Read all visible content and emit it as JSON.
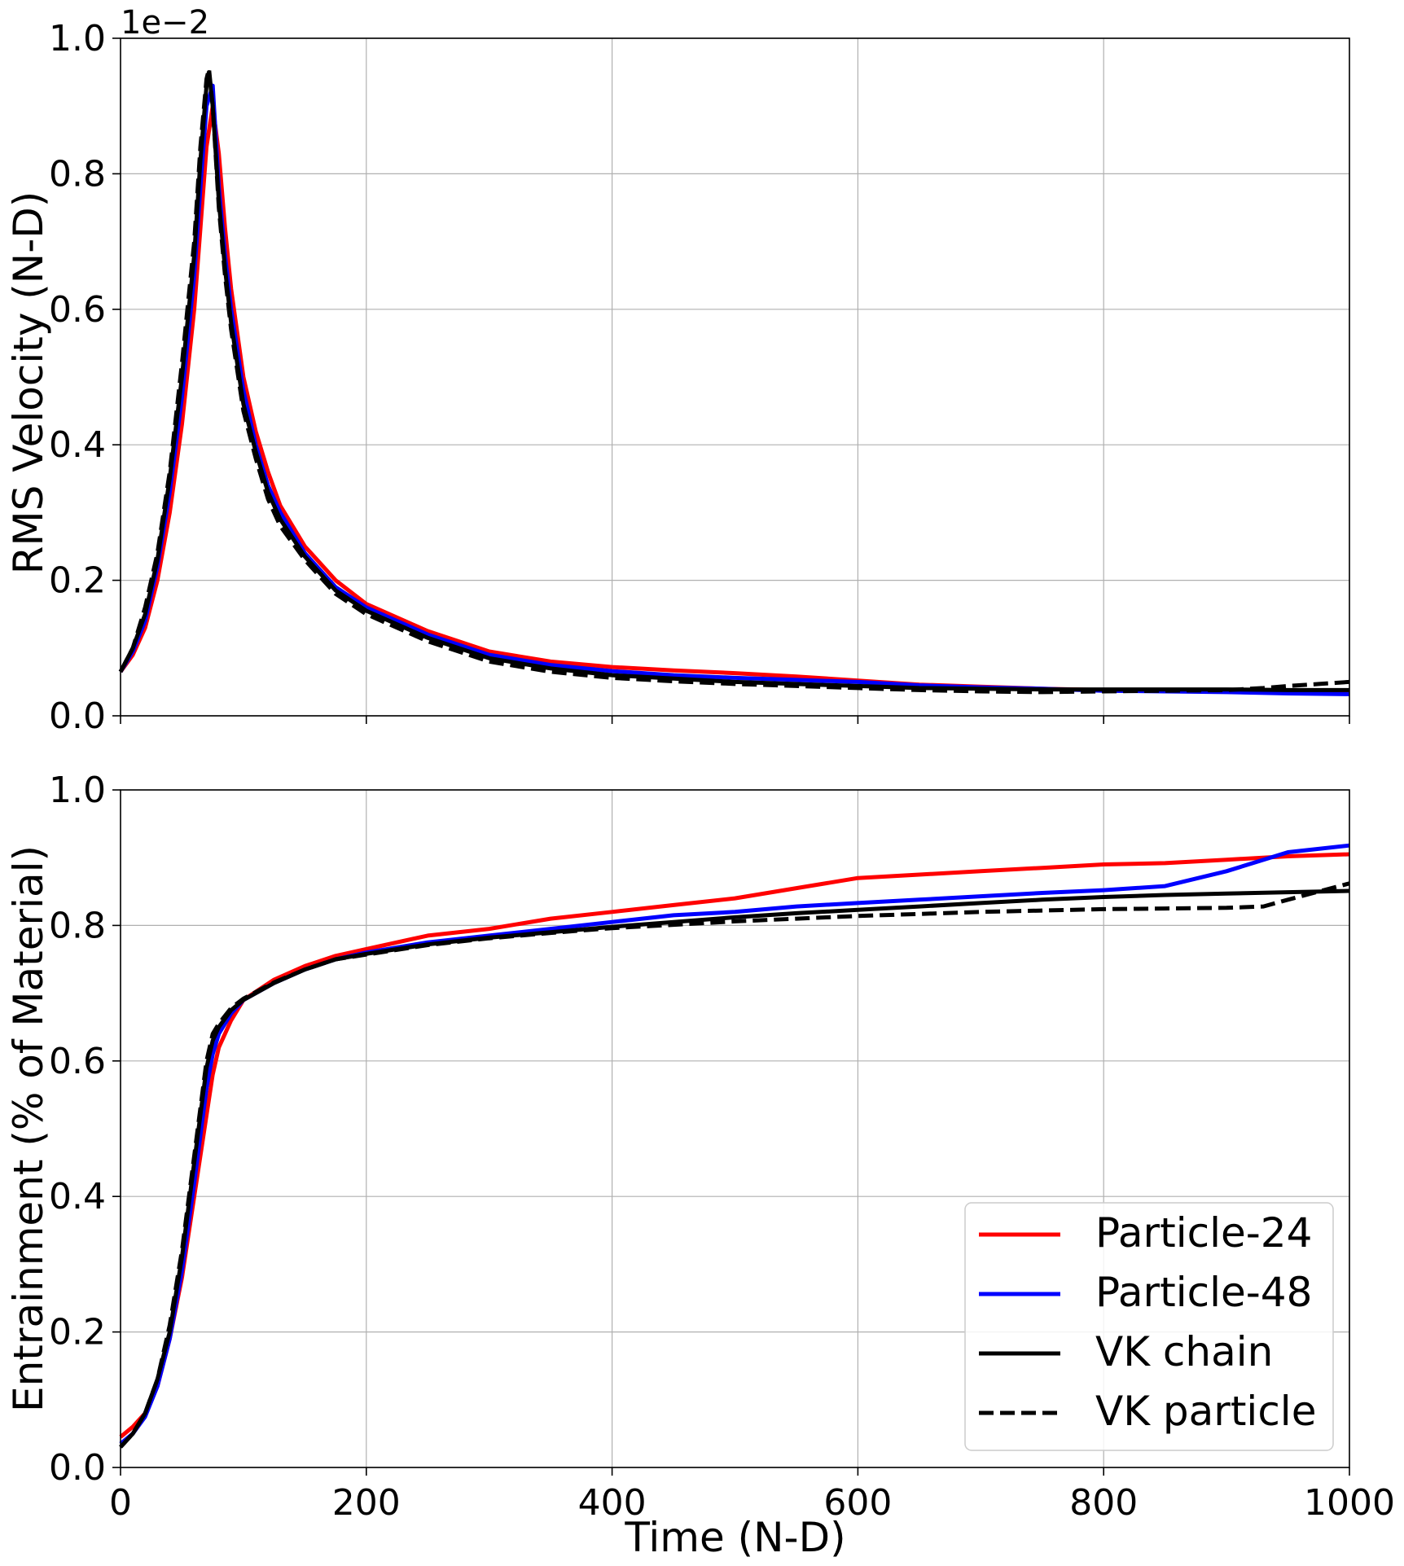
{
  "chart_data": [
    {
      "type": "line",
      "ylabel": "RMS Velocity (N-D)",
      "xlabel": "",
      "scale_label": "1e−2",
      "xlim": [
        0,
        1000
      ],
      "ylim": [
        0,
        1.0
      ],
      "xticks": [
        0,
        200,
        400,
        600,
        800,
        1000
      ],
      "xtick_labels_shown": false,
      "yticks": [
        "0.0",
        "0.2",
        "0.4",
        "0.6",
        "0.8",
        "1.0"
      ],
      "grid": true,
      "series": [
        {
          "name": "Particle-24",
          "color": "#ff0000",
          "dash": "solid",
          "x": [
            0,
            10,
            20,
            30,
            40,
            50,
            60,
            65,
            70,
            75,
            80,
            85,
            90,
            100,
            110,
            120,
            130,
            150,
            175,
            200,
            250,
            300,
            350,
            400,
            450,
            500,
            550,
            600,
            650,
            700,
            750,
            800,
            850,
            900,
            950,
            1000
          ],
          "y": [
            0.065,
            0.09,
            0.13,
            0.2,
            0.3,
            0.43,
            0.6,
            0.72,
            0.84,
            0.9,
            0.83,
            0.72,
            0.63,
            0.5,
            0.42,
            0.36,
            0.31,
            0.25,
            0.2,
            0.165,
            0.125,
            0.095,
            0.08,
            0.072,
            0.067,
            0.063,
            0.058,
            0.052,
            0.046,
            0.043,
            0.04,
            0.038,
            0.037,
            0.036,
            0.035,
            0.035
          ]
        },
        {
          "name": "Particle-48",
          "color": "#0000ff",
          "dash": "solid",
          "x": [
            0,
            10,
            20,
            30,
            40,
            50,
            60,
            65,
            70,
            75,
            80,
            85,
            90,
            100,
            110,
            120,
            130,
            150,
            175,
            200,
            250,
            300,
            350,
            400,
            450,
            500,
            550,
            600,
            650,
            700,
            750,
            800,
            850,
            900,
            950,
            1000
          ],
          "y": [
            0.065,
            0.095,
            0.14,
            0.22,
            0.33,
            0.47,
            0.65,
            0.78,
            0.9,
            0.93,
            0.78,
            0.68,
            0.6,
            0.48,
            0.4,
            0.34,
            0.3,
            0.24,
            0.19,
            0.16,
            0.12,
            0.09,
            0.075,
            0.066,
            0.06,
            0.056,
            0.053,
            0.05,
            0.045,
            0.042,
            0.04,
            0.037,
            0.036,
            0.035,
            0.033,
            0.032
          ]
        },
        {
          "name": "VK chain",
          "color": "#000000",
          "dash": "solid",
          "x": [
            0,
            10,
            20,
            30,
            40,
            50,
            60,
            65,
            70,
            72,
            75,
            80,
            85,
            90,
            100,
            110,
            120,
            130,
            150,
            175,
            200,
            250,
            300,
            350,
            400,
            450,
            500,
            550,
            600,
            650,
            700,
            750,
            800,
            850,
            900,
            950,
            1000
          ],
          "y": [
            0.065,
            0.1,
            0.15,
            0.23,
            0.35,
            0.5,
            0.68,
            0.82,
            0.93,
            0.95,
            0.9,
            0.76,
            0.66,
            0.58,
            0.46,
            0.39,
            0.33,
            0.29,
            0.235,
            0.185,
            0.155,
            0.115,
            0.085,
            0.07,
            0.06,
            0.055,
            0.05,
            0.047,
            0.044,
            0.041,
            0.04,
            0.039,
            0.039,
            0.039,
            0.039,
            0.038,
            0.038
          ]
        },
        {
          "name": "VK particle",
          "color": "#000000",
          "dash": "dashed",
          "x": [
            0,
            10,
            20,
            30,
            40,
            50,
            60,
            65,
            70,
            72,
            75,
            80,
            85,
            90,
            100,
            110,
            120,
            130,
            150,
            175,
            200,
            250,
            300,
            350,
            400,
            450,
            500,
            550,
            600,
            650,
            700,
            750,
            800,
            850,
            900,
            930,
            950,
            975,
            1000
          ],
          "y": [
            0.065,
            0.1,
            0.16,
            0.24,
            0.36,
            0.52,
            0.7,
            0.84,
            0.94,
            0.955,
            0.9,
            0.75,
            0.65,
            0.57,
            0.45,
            0.38,
            0.32,
            0.28,
            0.23,
            0.18,
            0.15,
            0.11,
            0.08,
            0.065,
            0.056,
            0.051,
            0.047,
            0.044,
            0.041,
            0.038,
            0.036,
            0.035,
            0.036,
            0.037,
            0.038,
            0.041,
            0.044,
            0.047,
            0.05
          ]
        }
      ]
    },
    {
      "type": "line",
      "ylabel": "Entrainment (% of Material)",
      "xlabel": "Time (N-D)",
      "xlim": [
        0,
        1000
      ],
      "ylim": [
        0,
        1.0
      ],
      "xticks": [
        0,
        200,
        400,
        600,
        800,
        1000
      ],
      "xtick_labels": [
        "0",
        "200",
        "400",
        "600",
        "800",
        "1000"
      ],
      "yticks": [
        "0.0",
        "0.2",
        "0.4",
        "0.6",
        "0.8",
        "1.0"
      ],
      "grid": true,
      "legend_position": "bottom-right",
      "series": [
        {
          "name": "Particle-24",
          "color": "#ff0000",
          "dash": "solid",
          "x": [
            0,
            10,
            20,
            30,
            40,
            50,
            60,
            70,
            75,
            80,
            90,
            100,
            125,
            150,
            175,
            200,
            250,
            300,
            350,
            400,
            450,
            500,
            550,
            600,
            650,
            700,
            750,
            800,
            850,
            900,
            950,
            1000
          ],
          "y": [
            0.045,
            0.06,
            0.08,
            0.12,
            0.19,
            0.28,
            0.4,
            0.52,
            0.58,
            0.62,
            0.66,
            0.69,
            0.72,
            0.74,
            0.755,
            0.765,
            0.785,
            0.795,
            0.81,
            0.82,
            0.83,
            0.84,
            0.855,
            0.87,
            0.875,
            0.88,
            0.885,
            0.89,
            0.892,
            0.897,
            0.902,
            0.905
          ]
        },
        {
          "name": "Particle-48",
          "color": "#0000ff",
          "dash": "solid",
          "x": [
            0,
            10,
            20,
            30,
            40,
            50,
            60,
            70,
            75,
            80,
            90,
            100,
            125,
            150,
            175,
            200,
            250,
            300,
            350,
            400,
            450,
            500,
            550,
            600,
            650,
            700,
            750,
            800,
            850,
            900,
            950,
            1000
          ],
          "y": [
            0.035,
            0.05,
            0.075,
            0.12,
            0.19,
            0.29,
            0.42,
            0.56,
            0.61,
            0.64,
            0.67,
            0.69,
            0.715,
            0.735,
            0.75,
            0.76,
            0.775,
            0.785,
            0.795,
            0.805,
            0.815,
            0.82,
            0.828,
            0.833,
            0.838,
            0.843,
            0.848,
            0.852,
            0.858,
            0.88,
            0.908,
            0.918
          ]
        },
        {
          "name": "VK chain",
          "color": "#000000",
          "dash": "solid",
          "x": [
            0,
            10,
            20,
            30,
            40,
            50,
            60,
            70,
            75,
            80,
            90,
            100,
            125,
            150,
            175,
            200,
            250,
            300,
            350,
            400,
            450,
            500,
            550,
            600,
            650,
            700,
            750,
            800,
            850,
            900,
            950,
            1000
          ],
          "y": [
            0.03,
            0.05,
            0.08,
            0.13,
            0.2,
            0.31,
            0.45,
            0.59,
            0.63,
            0.65,
            0.675,
            0.69,
            0.715,
            0.735,
            0.75,
            0.758,
            0.772,
            0.782,
            0.79,
            0.798,
            0.805,
            0.812,
            0.818,
            0.823,
            0.828,
            0.833,
            0.838,
            0.842,
            0.845,
            0.847,
            0.849,
            0.851
          ]
        },
        {
          "name": "VK particle",
          "color": "#000000",
          "dash": "dashed",
          "x": [
            0,
            10,
            20,
            30,
            40,
            50,
            60,
            70,
            75,
            80,
            90,
            100,
            125,
            150,
            175,
            200,
            250,
            300,
            350,
            400,
            450,
            500,
            550,
            600,
            650,
            700,
            750,
            800,
            850,
            900,
            930,
            950,
            975,
            1000
          ],
          "y": [
            0.03,
            0.05,
            0.08,
            0.13,
            0.21,
            0.32,
            0.46,
            0.6,
            0.64,
            0.655,
            0.678,
            0.692,
            0.716,
            0.735,
            0.75,
            0.757,
            0.771,
            0.781,
            0.789,
            0.796,
            0.801,
            0.806,
            0.81,
            0.814,
            0.817,
            0.82,
            0.822,
            0.824,
            0.825,
            0.826,
            0.828,
            0.838,
            0.85,
            0.862
          ]
        }
      ]
    }
  ]
}
